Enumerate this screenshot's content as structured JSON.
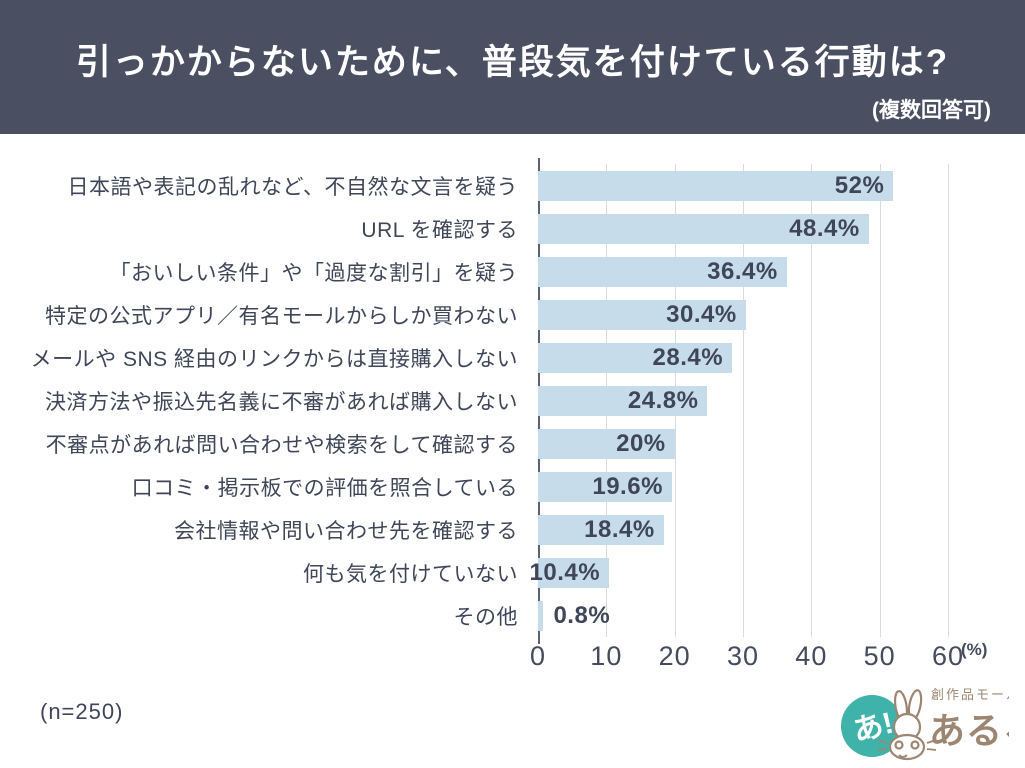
{
  "header": {
    "title": "引っかからないために、普段気を付けている行動は?",
    "note": "(複数回答可)",
    "bg_color": "#4a5061",
    "text_color": "#ffffff"
  },
  "chart_data": {
    "type": "bar",
    "orientation": "horizontal",
    "title": "引っかからないために、普段気を付けている行動は?",
    "subtitle": "(複数回答可)",
    "categories": [
      "日本語や表記の乱れなど、不自然な文言を疑う",
      "URL を確認する",
      "「おいしい条件」や「過度な割引」を疑う",
      "特定の公式アプリ／有名モールからしか買わない",
      "メールや SNS 経由のリンクからは直接購入しない",
      "決済方法や振込先名義に不審があれば購入しない",
      "不審点があれば問い合わせや検索をして確認する",
      "口コミ・掲示板での評価を照合している",
      "会社情報や問い合わせ先を確認する",
      "何も気を付けていない",
      "その他"
    ],
    "values": [
      52,
      48.4,
      36.4,
      30.4,
      28.4,
      24.8,
      20,
      19.6,
      18.4,
      10.4,
      0.8
    ],
    "value_labels": [
      "52%",
      "48.4%",
      "36.4%",
      "30.4%",
      "28.4%",
      "24.8%",
      "20%",
      "19.6%",
      "18.4%",
      "10.4%",
      "0.8%"
    ],
    "xlim": [
      0,
      60
    ],
    "x_ticks": [
      "0",
      "10",
      "20",
      "30",
      "40",
      "50",
      "60"
    ],
    "x_tick_values": [
      0,
      10,
      20,
      30,
      40,
      50,
      60
    ],
    "x_unit": "(%)",
    "grid": "vertical gridlines on",
    "legend": "none",
    "sample_size": "(n=250)",
    "bar_color": "#c7dcea",
    "value_label_color": "#3f4658"
  },
  "footer": {
    "sample_size": "(n=250)"
  },
  "logo": {
    "badge": "あ!",
    "tagline": "創作品モール",
    "brand": "あるる",
    "teal_color": "#3fb3a9",
    "brown_color": "#9c8672"
  }
}
